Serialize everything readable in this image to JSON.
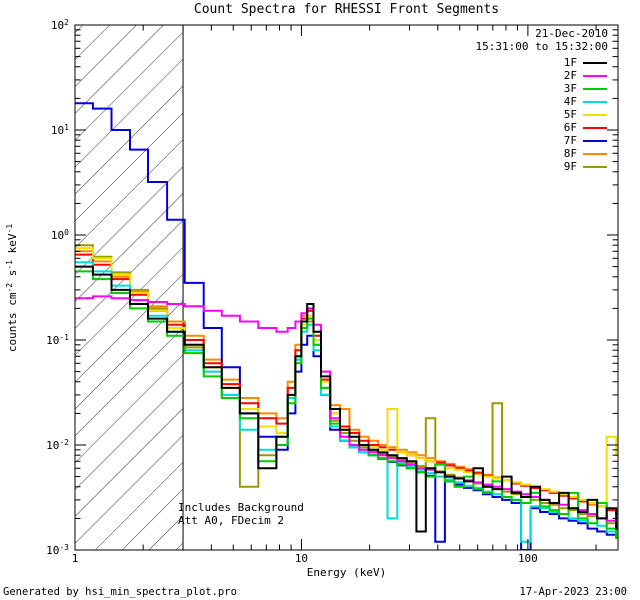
{
  "title": "Count Spectra for RHESSI Front Segments",
  "annotations": {
    "date": "21-Dec-2010",
    "time_range": "15:31:00 to 15:32:00",
    "background_note": "Includes Background",
    "attenuation_note": "Att A0, FDecim 2"
  },
  "footer": {
    "generated_by": "Generated by hsi_min_spectra_plot.pro",
    "timestamp": "17-Apr-2023 23:00"
  },
  "chart_data": {
    "type": "line",
    "subtype": "stepped-spectra",
    "x_scale": "log",
    "y_scale": "log",
    "xlabel": "Energy (keV)",
    "ylabel": "counts cm^-2 s^-1 keV^-1",
    "xlim": [
      1,
      250
    ],
    "ylim": [
      0.001,
      100
    ],
    "grid": false,
    "legend_position": "top-right",
    "x_ticks": [
      {
        "value": 1,
        "label": "1"
      },
      {
        "value": 10,
        "label": "10"
      },
      {
        "value": 100,
        "label": "100"
      }
    ],
    "y_ticks": [
      {
        "value": 100,
        "label": "10^2"
      },
      {
        "value": 10,
        "label": "10^1"
      },
      {
        "value": 1,
        "label": "10^0"
      },
      {
        "value": 0.1,
        "label": "10^-1"
      },
      {
        "value": 0.01,
        "label": "10^-2"
      },
      {
        "value": 0.001,
        "label": "10^-3"
      }
    ],
    "hatch_region": {
      "x_start": 1,
      "x_end": 3
    },
    "energies_kev": [
      1.0,
      1.2,
      1.45,
      1.75,
      2.1,
      2.55,
      3.05,
      3.7,
      4.45,
      5.35,
      6.45,
      7.75,
      8.7,
      9.4,
      10.0,
      10.6,
      11.3,
      12.2,
      13.4,
      14.8,
      16.3,
      18.0,
      19.8,
      21.8,
      24.0,
      26.5,
      29.2,
      32.2,
      35.4,
      39.0,
      43.0,
      47.4,
      52.2,
      57.5,
      63.3,
      69.8,
      76.9,
      84.7,
      93.3,
      102.8,
      113.2,
      124.7,
      137.4,
      151.3,
      166.7,
      183.6,
      202.3,
      222.8,
      245.5
    ],
    "series": [
      {
        "name": "1F",
        "color": "#000000",
        "values": [
          0.5,
          0.42,
          0.3,
          0.22,
          0.16,
          0.12,
          0.09,
          0.055,
          0.035,
          0.02,
          0.006,
          0.012,
          0.03,
          0.07,
          0.15,
          0.22,
          0.12,
          0.045,
          0.022,
          0.014,
          0.012,
          0.01,
          0.009,
          0.0085,
          0.008,
          0.0075,
          0.007,
          0.0015,
          0.006,
          0.0055,
          0.005,
          0.0048,
          0.0045,
          0.006,
          0.004,
          0.0038,
          0.005,
          0.0035,
          0.0032,
          0.004,
          0.003,
          0.0028,
          0.0035,
          0.0025,
          0.0023,
          0.003,
          0.002,
          0.0025,
          0.0016
        ]
      },
      {
        "name": "2F",
        "color": "#ff00ff",
        "values": [
          0.25,
          0.26,
          0.25,
          0.24,
          0.23,
          0.22,
          0.21,
          0.19,
          0.17,
          0.15,
          0.13,
          0.12,
          0.13,
          0.15,
          0.18,
          0.2,
          0.14,
          0.05,
          0.018,
          0.012,
          0.01,
          0.009,
          0.0085,
          0.008,
          0.0075,
          0.007,
          0.0065,
          0.006,
          0.0058,
          0.0055,
          0.005,
          0.0048,
          0.0046,
          0.0044,
          0.0042,
          0.004,
          0.0038,
          0.0036,
          0.0034,
          0.0032,
          0.003,
          0.0028,
          0.0027,
          0.0025,
          0.0024,
          0.0022,
          0.002,
          0.0019,
          0.0017
        ]
      },
      {
        "name": "3F",
        "color": "#00cc00",
        "values": [
          0.45,
          0.38,
          0.28,
          0.2,
          0.15,
          0.11,
          0.075,
          0.045,
          0.028,
          0.018,
          0.007,
          0.01,
          0.025,
          0.06,
          0.13,
          0.16,
          0.09,
          0.035,
          0.016,
          0.012,
          0.01,
          0.009,
          0.008,
          0.0075,
          0.007,
          0.0065,
          0.006,
          0.0055,
          0.005,
          0.0065,
          0.0045,
          0.004,
          0.005,
          0.0038,
          0.0035,
          0.0045,
          0.0032,
          0.003,
          0.0028,
          0.0035,
          0.0026,
          0.0024,
          0.0022,
          0.0035,
          0.002,
          0.0018,
          0.0028,
          0.0016,
          0.0013
        ]
      },
      {
        "name": "4F",
        "color": "#00dddd",
        "values": [
          0.55,
          0.45,
          0.33,
          0.24,
          0.17,
          0.12,
          0.08,
          0.05,
          0.03,
          0.014,
          0.009,
          0.012,
          0.028,
          0.065,
          0.12,
          0.14,
          0.08,
          0.03,
          0.015,
          0.011,
          0.0095,
          0.0085,
          0.008,
          0.0075,
          0.002,
          0.0068,
          0.0063,
          0.0058,
          0.0054,
          0.005,
          0.0047,
          0.0044,
          0.0041,
          0.0039,
          0.0036,
          0.0034,
          0.0032,
          0.003,
          0.0012,
          0.0026,
          0.0025,
          0.0023,
          0.0022,
          0.002,
          0.0019,
          0.0018,
          0.0017,
          0.0015,
          0.0013
        ]
      },
      {
        "name": "5F",
        "color": "#f0e000",
        "values": [
          0.75,
          0.6,
          0.42,
          0.28,
          0.19,
          0.13,
          0.09,
          0.055,
          0.035,
          0.022,
          0.015,
          0.013,
          0.03,
          0.07,
          0.14,
          0.17,
          0.1,
          0.04,
          0.02,
          0.014,
          0.012,
          0.01,
          0.0095,
          0.009,
          0.022,
          0.0085,
          0.008,
          0.0075,
          0.007,
          0.0065,
          0.006,
          0.0058,
          0.0055,
          0.0052,
          0.005,
          0.0048,
          0.0046,
          0.0044,
          0.0042,
          0.004,
          0.0038,
          0.0036,
          0.0034,
          0.0032,
          0.003,
          0.0028,
          0.0026,
          0.012,
          0.008
        ]
      },
      {
        "name": "6F",
        "color": "#ff0000",
        "values": [
          0.65,
          0.52,
          0.38,
          0.27,
          0.19,
          0.14,
          0.1,
          0.06,
          0.038,
          0.025,
          0.018,
          0.016,
          0.035,
          0.08,
          0.16,
          0.19,
          0.11,
          0.042,
          0.02,
          0.015,
          0.013,
          0.011,
          0.01,
          0.0095,
          0.009,
          0.0085,
          0.008,
          0.0075,
          0.007,
          0.0068,
          0.0064,
          0.006,
          0.0057,
          0.0054,
          0.0051,
          0.0048,
          0.0046,
          0.0043,
          0.0041,
          0.0039,
          0.0037,
          0.0035,
          0.0033,
          0.0031,
          0.0029,
          0.0028,
          0.0026,
          0.0024,
          0.0022
        ]
      },
      {
        "name": "7F",
        "color": "#0000dd",
        "values": [
          18,
          16,
          10,
          6.5,
          3.2,
          1.4,
          0.35,
          0.13,
          0.055,
          0.02,
          0.012,
          0.009,
          0.02,
          0.05,
          0.09,
          0.11,
          0.07,
          0.03,
          0.014,
          0.011,
          0.0095,
          0.0085,
          0.008,
          0.0074,
          0.0069,
          0.0064,
          0.006,
          0.0055,
          0.0051,
          0.0012,
          0.0045,
          0.0042,
          0.0039,
          0.0037,
          0.0034,
          0.0032,
          0.003,
          0.0028,
          0.001,
          0.0025,
          0.0023,
          0.0022,
          0.002,
          0.0019,
          0.0018,
          0.0016,
          0.0015,
          0.0014,
          0.0013
        ]
      },
      {
        "name": "8F",
        "color": "#ff8800",
        "values": [
          0.7,
          0.56,
          0.4,
          0.29,
          0.21,
          0.15,
          0.11,
          0.065,
          0.042,
          0.028,
          0.02,
          0.018,
          0.04,
          0.09,
          0.17,
          0.19,
          0.12,
          0.05,
          0.024,
          0.022,
          0.014,
          0.012,
          0.011,
          0.01,
          0.0095,
          0.009,
          0.0085,
          0.008,
          0.0075,
          0.007,
          0.0066,
          0.0062,
          0.0059,
          0.0055,
          0.0052,
          0.0049,
          0.0046,
          0.0044,
          0.0041,
          0.0039,
          0.0037,
          0.0035,
          0.0033,
          0.0031,
          0.0029,
          0.0027,
          0.0026,
          0.0024,
          0.0022
        ]
      },
      {
        "name": "9F",
        "color": "#999900",
        "values": [
          0.8,
          0.62,
          0.44,
          0.3,
          0.2,
          0.13,
          0.085,
          0.05,
          0.03,
          0.004,
          0.008,
          0.012,
          0.03,
          0.065,
          0.13,
          0.15,
          0.09,
          0.035,
          0.017,
          0.013,
          0.011,
          0.0095,
          0.0088,
          0.0082,
          0.0077,
          0.0072,
          0.0067,
          0.0063,
          0.018,
          0.0056,
          0.0052,
          0.0049,
          0.0046,
          0.0043,
          0.004,
          0.025,
          0.0036,
          0.0034,
          0.0032,
          0.003,
          0.0028,
          0.0027,
          0.0025,
          0.0024,
          0.0022,
          0.0021,
          0.002,
          0.0018,
          0.0016
        ]
      }
    ]
  }
}
